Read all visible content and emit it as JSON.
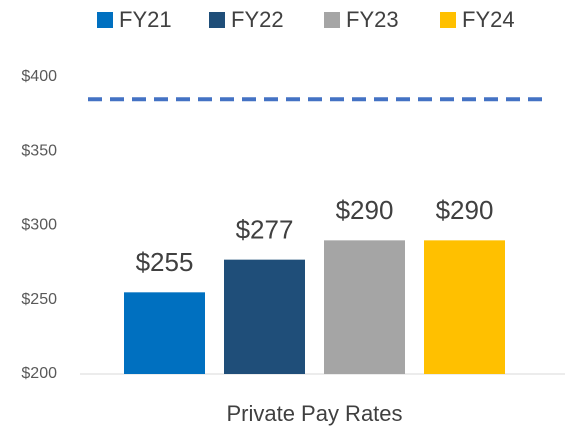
{
  "chart_data": {
    "type": "bar",
    "categories": [
      "Private Pay Rates"
    ],
    "series": [
      {
        "name": "FY21",
        "color": "#0070c0",
        "values": [
          255
        ],
        "value_labels": [
          "$255"
        ]
      },
      {
        "name": "FY22",
        "color": "#1f4e79",
        "values": [
          277
        ],
        "value_labels": [
          "$277"
        ]
      },
      {
        "name": "FY23",
        "color": "#a5a5a5",
        "values": [
          290
        ],
        "value_labels": [
          "$290"
        ]
      },
      {
        "name": "FY24",
        "color": "#ffc000",
        "values": [
          290
        ],
        "value_labels": [
          "$290"
        ]
      }
    ],
    "ylim": [
      200,
      400
    ],
    "yticks": [
      {
        "value": 200,
        "label": "$200"
      },
      {
        "value": 250,
        "label": "$250"
      },
      {
        "value": 300,
        "label": "$300"
      },
      {
        "value": 350,
        "label": "$350"
      },
      {
        "value": 400,
        "label": "$400"
      }
    ],
    "reference_line": {
      "value": 385,
      "color": "#4472c4"
    },
    "legend": "top",
    "grid": false
  }
}
